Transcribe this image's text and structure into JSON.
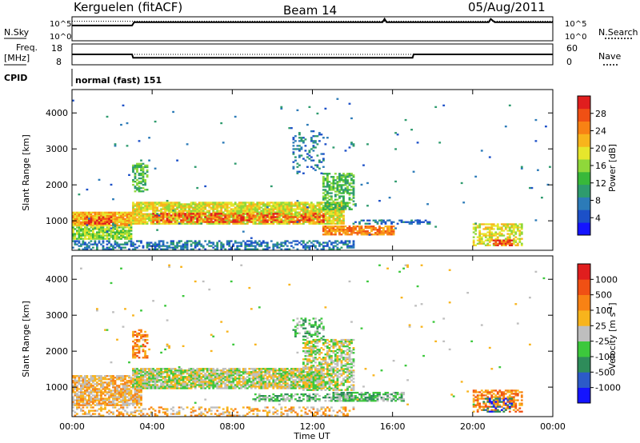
{
  "header": {
    "station": "Kerguelen (fitACF)",
    "beam": "Beam 14",
    "date": "05/Aug/2011"
  },
  "labels": {
    "nsky": "N.Sky",
    "nsearch": "N.Search",
    "freq_line1": "Freq.",
    "freq_line2": "[MHz]",
    "nave": "Nave",
    "cpid": "CPID",
    "cpid_value": "normal (fast) 151",
    "noise_left_top": "10^5",
    "noise_left_bottom": "10^0",
    "noise_right_top": "10^5",
    "noise_right_bottom": "10^0",
    "freq_left_top": "18",
    "freq_left_bottom": "8",
    "nave_right_top": "60",
    "nave_right_bottom": "0",
    "xlabel": "Time UT",
    "ylabel": "Slant Range [km]",
    "power_label": "Power [dB]",
    "velocity_label": "Velocity [m s^-1]"
  },
  "chart_data": [
    {
      "type": "line",
      "panel": "noise",
      "series": [
        {
          "name": "N.Sky",
          "x": [
            0,
            3,
            3.1,
            15.5,
            15.6,
            15.7,
            20.8,
            20.9,
            21.1,
            24
          ],
          "y": [
            0.7,
            0.7,
            0.85,
            0.85,
            1.0,
            0.85,
            0.85,
            1.0,
            0.85,
            0.85
          ]
        },
        {
          "name": "N.Search",
          "x": [
            0,
            24
          ],
          "y": [
            0.9,
            0.9
          ]
        }
      ]
    },
    {
      "type": "line",
      "panel": "frequency",
      "series": [
        {
          "name": "Freq",
          "x": [
            0,
            3,
            3.05,
            17,
            17.05,
            24
          ],
          "y": [
            12.5,
            12.5,
            10,
            10,
            12.5,
            12.5
          ]
        },
        {
          "name": "Nave",
          "x": [
            0,
            24
          ],
          "y": [
            30,
            30
          ]
        }
      ]
    },
    {
      "type": "heatmap",
      "panel": "power",
      "xlabel": "Time UT",
      "ylabel": "Slant Range [km]",
      "xlim": [
        0,
        24
      ],
      "ylim": [
        180,
        4650
      ],
      "xticks": [
        "00:00",
        "04:00",
        "08:00",
        "12:00",
        "16:00",
        "20:00",
        "00:00"
      ],
      "yticks": [
        1000,
        2000,
        3000,
        4000
      ],
      "colorbar": {
        "label": "Power [dB]",
        "ticks": [
          "4",
          "8",
          "12",
          "16",
          "20",
          "24",
          "28"
        ],
        "colors": [
          "#1414ff",
          "#1c50c8",
          "#2c7bb8",
          "#2e9b6e",
          "#38b83a",
          "#8fd83a",
          "#e6e62c",
          "#f8b41c",
          "#f88214",
          "#f05014",
          "#e01e1e"
        ]
      },
      "regions": [
        {
          "t0": 0.0,
          "t1": 14.0,
          "r0": 190,
          "r1": 460,
          "level": 2,
          "density": 0.5
        },
        {
          "t0": 0.0,
          "t1": 3.0,
          "r0": 480,
          "r1": 820,
          "level": 5,
          "density": 0.85
        },
        {
          "t0": 0.0,
          "t1": 3.0,
          "r0": 850,
          "r1": 1250,
          "level": 7,
          "density": 0.95
        },
        {
          "t0": 0.5,
          "t1": 2.0,
          "r0": 900,
          "r1": 1100,
          "level": 10,
          "density": 0.6
        },
        {
          "t0": 3.0,
          "t1": 13.5,
          "r0": 900,
          "r1": 1500,
          "level": 6,
          "density": 0.9
        },
        {
          "t0": 4.0,
          "t1": 12.5,
          "r0": 950,
          "r1": 1200,
          "level": 9,
          "density": 0.5
        },
        {
          "t0": 3.0,
          "t1": 3.8,
          "r0": 1800,
          "r1": 2600,
          "level": 4,
          "density": 0.6
        },
        {
          "t0": 12.5,
          "t1": 14.0,
          "r0": 1300,
          "r1": 2300,
          "level": 4,
          "density": 0.6
        },
        {
          "t0": 12.5,
          "t1": 16.0,
          "r0": 600,
          "r1": 850,
          "level": 8,
          "density": 0.8
        },
        {
          "t0": 11.0,
          "t1": 12.5,
          "r0": 2300,
          "r1": 3500,
          "level": 2,
          "density": 0.25
        },
        {
          "t0": 14.0,
          "t1": 18.0,
          "r0": 900,
          "r1": 1000,
          "level": 2,
          "density": 0.5
        },
        {
          "t0": 20.0,
          "t1": 22.5,
          "r0": 300,
          "r1": 900,
          "level": 6,
          "density": 0.6
        },
        {
          "t0": 21.0,
          "t1": 22.0,
          "r0": 300,
          "r1": 450,
          "level": 9,
          "density": 0.7
        },
        {
          "t0": 0.0,
          "t1": 24.0,
          "r0": 500,
          "r1": 4400,
          "level": 2,
          "density": 0.006
        }
      ]
    },
    {
      "type": "heatmap",
      "panel": "velocity",
      "xlabel": "Time UT",
      "ylabel": "Slant Range [km]",
      "xlim": [
        0,
        24
      ],
      "ylim": [
        180,
        4650
      ],
      "xticks": [
        "00:00",
        "04:00",
        "08:00",
        "12:00",
        "16:00",
        "20:00",
        "00:00"
      ],
      "yticks": [
        1000,
        2000,
        3000,
        4000
      ],
      "colorbar": {
        "label": "Velocity [m s^-1]",
        "ticks": [
          "1000",
          "500",
          "100",
          "25",
          "-25",
          "-100",
          "-500",
          "-1000"
        ],
        "colors": [
          "#1414ff",
          "#2c5ac8",
          "#2e8c5a",
          "#3cc83c",
          "#bebebe",
          "#f8b41c",
          "#f88214",
          "#f05014",
          "#e01e1e"
        ]
      },
      "regions": [
        {
          "t0": 0.0,
          "t1": 14.0,
          "r0": 190,
          "r1": 460,
          "level": 5,
          "density": 0.35
        },
        {
          "t0": 0.0,
          "t1": 3.5,
          "r0": 480,
          "r1": 1300,
          "level": 5,
          "density": 0.8
        },
        {
          "t0": 3.0,
          "t1": 12.5,
          "r0": 950,
          "r1": 1500,
          "level": 4,
          "density": 0.85
        },
        {
          "t0": 3.0,
          "t1": 3.8,
          "r0": 1800,
          "r1": 2600,
          "level": 6,
          "density": 0.55
        },
        {
          "t0": 11.5,
          "t1": 14.0,
          "r0": 900,
          "r1": 2300,
          "level": 4,
          "density": 0.6
        },
        {
          "t0": 9.0,
          "t1": 14.0,
          "r0": 600,
          "r1": 800,
          "level": 3,
          "density": 0.55
        },
        {
          "t0": 13.0,
          "t1": 16.5,
          "r0": 600,
          "r1": 850,
          "level": 3,
          "density": 0.7
        },
        {
          "t0": 11.0,
          "t1": 12.5,
          "r0": 2300,
          "r1": 2900,
          "level": 3,
          "density": 0.3
        },
        {
          "t0": 20.0,
          "t1": 22.5,
          "r0": 300,
          "r1": 900,
          "level": 6,
          "density": 0.55
        },
        {
          "t0": 20.5,
          "t1": 22.0,
          "r0": 300,
          "r1": 700,
          "level": 1,
          "density": 0.25
        },
        {
          "t0": 0.0,
          "t1": 24.0,
          "r0": 500,
          "r1": 4400,
          "level": 4,
          "density": 0.006
        }
      ]
    }
  ]
}
